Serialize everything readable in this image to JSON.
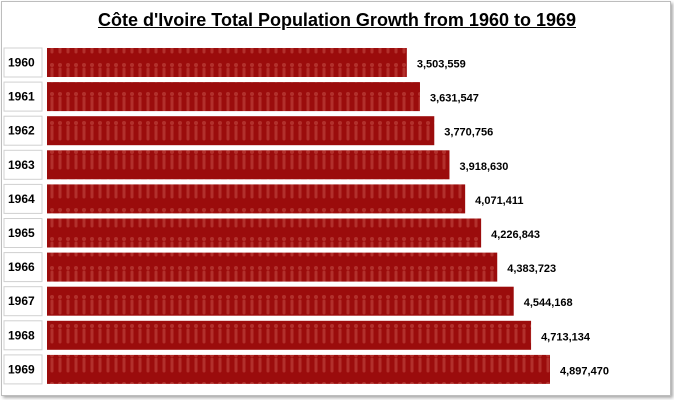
{
  "chart_data": {
    "type": "bar",
    "orientation": "horizontal",
    "title": "Côte d'Ivoire Total Population Growth from 1960 to 1969",
    "categories": [
      "1960",
      "1961",
      "1962",
      "1963",
      "1964",
      "1965",
      "1966",
      "1967",
      "1968",
      "1969"
    ],
    "values": [
      3503559,
      3631547,
      3770756,
      3918630,
      4071411,
      4226843,
      4383723,
      4544168,
      4713134,
      4897470
    ],
    "data_labels": [
      "3,503,559",
      "3,631,547",
      "3,770,756",
      "3,918,630",
      "4,071,411",
      "4,226,843",
      "4,383,723",
      "4,544,168",
      "4,713,134",
      "4,897,470"
    ],
    "xlabel": "",
    "ylabel": "",
    "xlim": [
      0,
      4900000
    ],
    "grid": false,
    "legend": "none",
    "bar_color": "#9b0c0c"
  }
}
